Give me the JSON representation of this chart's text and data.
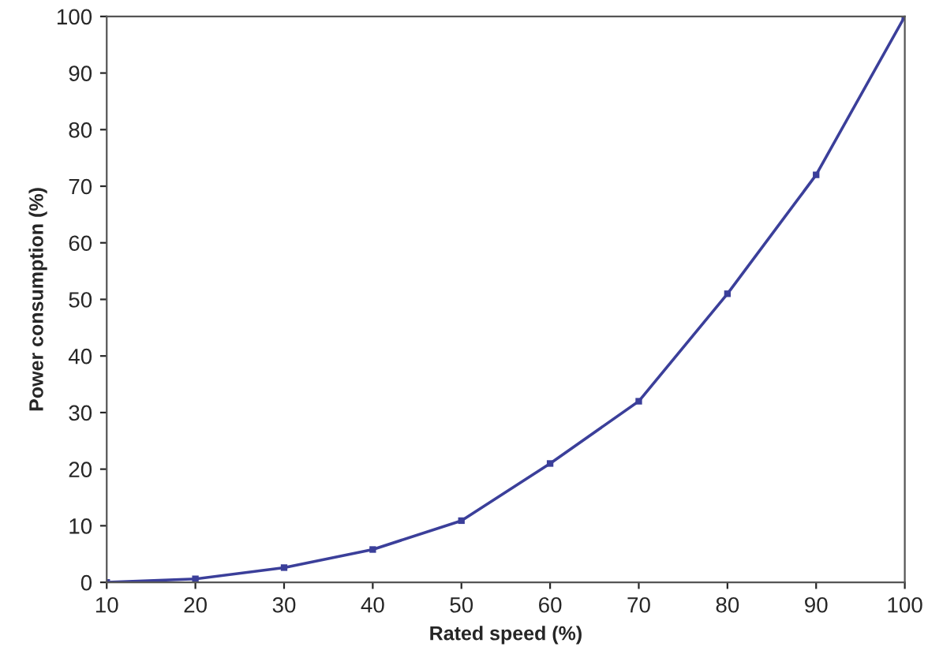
{
  "chart_data": {
    "type": "line",
    "xlabel": "Rated speed (%)",
    "ylabel": "Power consumption (%)",
    "x": [
      10,
      20,
      30,
      40,
      50,
      60,
      70,
      80,
      90,
      100
    ],
    "series": [
      {
        "color": "#3b3f9a",
        "values": [
          0,
          0.6,
          2.6,
          5.8,
          10.9,
          21,
          32,
          51,
          72,
          100
        ]
      }
    ],
    "xlim": [
      10,
      100
    ],
    "xticks": [
      10,
      20,
      30,
      40,
      50,
      60,
      70,
      80,
      90,
      100
    ],
    "ylim": [
      0,
      100
    ],
    "yticks": [
      0,
      10,
      20,
      30,
      40,
      50,
      60,
      70,
      80,
      90,
      100
    ],
    "grid": false,
    "legend": false,
    "marker": "square",
    "line_style": "solid"
  }
}
